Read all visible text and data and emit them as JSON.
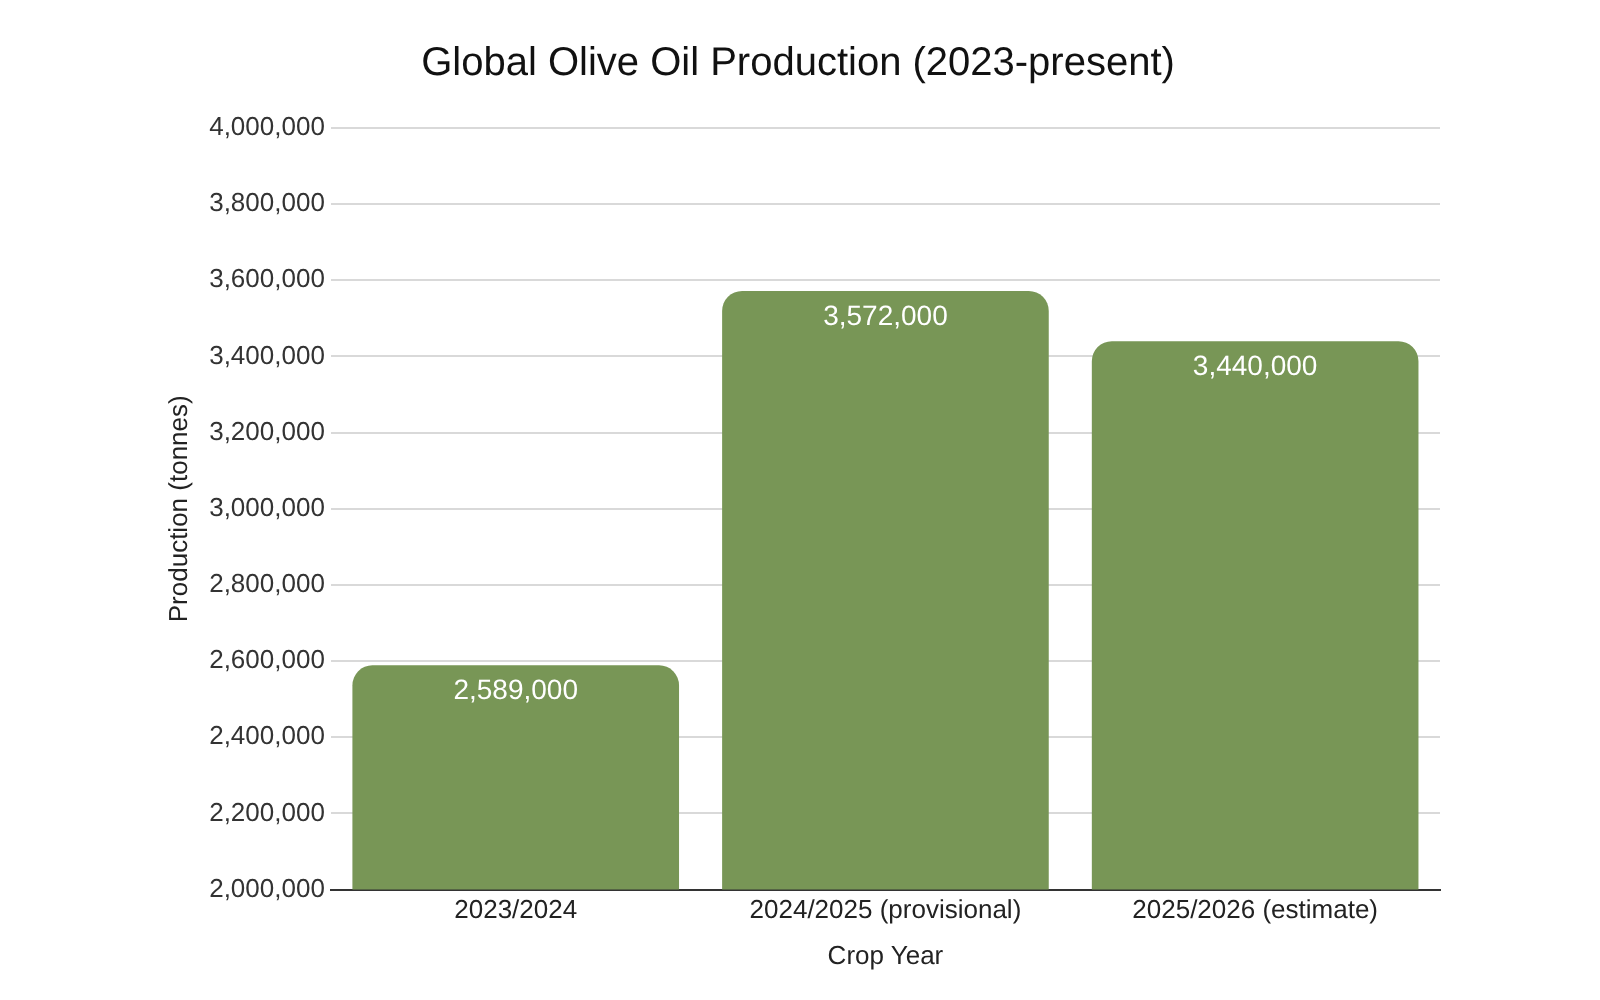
{
  "chart_data": {
    "type": "bar",
    "title": "Global Olive Oil Production (2023-present)",
    "xlabel": "Crop Year",
    "ylabel": "Production (tonnes)",
    "categories": [
      "2023/2024",
      "2024/2025 (provisional)",
      "2025/2026 (estimate)"
    ],
    "values": [
      2589000,
      3572000,
      3440000
    ],
    "color": "#789656",
    "value_labels": [
      "2,589,000",
      "3,572,000",
      "3,440,000"
    ],
    "ylim": [
      2000000,
      4000000
    ],
    "yticks": [
      {
        "value": 2000000,
        "label": "2,000,000"
      },
      {
        "value": 2200000,
        "label": "2,200,000"
      },
      {
        "value": 2400000,
        "label": "2,400,000"
      },
      {
        "value": 2600000,
        "label": "2,600,000"
      },
      {
        "value": 2800000,
        "label": "2,800,000"
      },
      {
        "value": 3000000,
        "label": "3,000,000"
      },
      {
        "value": 3200000,
        "label": "3,200,000"
      },
      {
        "value": 3400000,
        "label": "3,400,000"
      },
      {
        "value": 3600000,
        "label": "3,600,000"
      },
      {
        "value": 3800000,
        "label": "3,800,000"
      },
      {
        "value": 4000000,
        "label": "4,000,000"
      }
    ],
    "grid": "y",
    "legend": false
  }
}
